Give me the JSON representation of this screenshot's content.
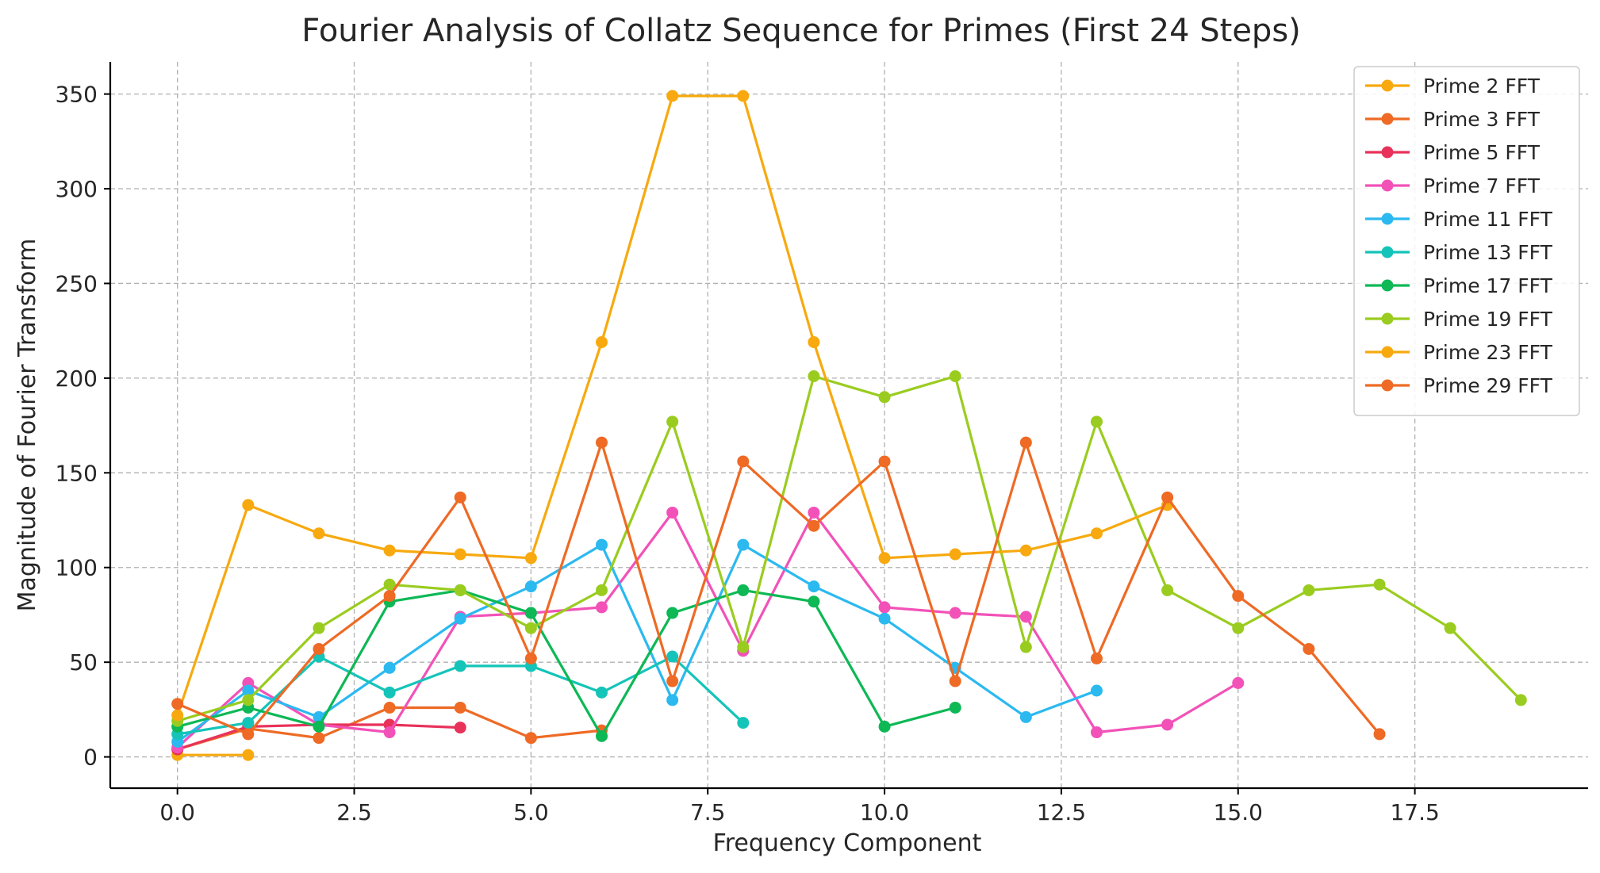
{
  "chart_data": {
    "type": "line",
    "title": "Fourier Analysis of Collatz Sequence for Primes (First 24 Steps)",
    "xlabel": "Frequency Component",
    "ylabel": "Magnitude of Fourier Transform",
    "xlim": [
      -0.95,
      19.95
    ],
    "ylim": [
      -16.5,
      367
    ],
    "xticks": [
      0,
      2.5,
      5,
      7.5,
      10,
      12.5,
      15,
      17.5
    ],
    "xtick_labels": [
      "0.0",
      "2.5",
      "5.0",
      "7.5",
      "10.0",
      "12.5",
      "15.0",
      "17.5"
    ],
    "yticks": [
      0,
      50,
      100,
      150,
      200,
      250,
      300,
      350
    ],
    "ytick_labels": [
      "0",
      "50",
      "100",
      "150",
      "200",
      "250",
      "300",
      "350"
    ],
    "grid": true,
    "legend_position": "top-right",
    "series": [
      {
        "name": "Prime 2 FFT",
        "color": "#F7A90F",
        "x": [
          0,
          1
        ],
        "values": [
          1,
          1
        ]
      },
      {
        "name": "Prime 3 FFT",
        "color": "#EE6A25",
        "x": [
          0,
          1,
          2,
          3,
          4,
          5,
          6
        ],
        "values": [
          4,
          15,
          10,
          26,
          26,
          10,
          14
        ]
      },
      {
        "name": "Prime 5 FFT",
        "color": "#E8325A",
        "x": [
          0,
          1,
          2,
          3,
          4
        ],
        "values": [
          4,
          16,
          17,
          17,
          15.5
        ]
      },
      {
        "name": "Prime 7 FFT",
        "color": "#F252B8",
        "x": [
          0,
          1,
          2,
          3,
          4,
          5,
          6,
          7,
          8,
          9,
          10,
          11,
          12,
          13,
          14,
          15
        ],
        "values": [
          5,
          39,
          17,
          13,
          74,
          76,
          79,
          129,
          56,
          129,
          79,
          76,
          74,
          13,
          17,
          39
        ]
      },
      {
        "name": "Prime 11 FFT",
        "color": "#2BB9F0",
        "x": [
          0,
          1,
          2,
          3,
          4,
          5,
          6,
          7,
          8,
          9,
          10,
          11,
          12,
          13
        ],
        "values": [
          8,
          35,
          21,
          47,
          73,
          90,
          112,
          30,
          112,
          90,
          73,
          47,
          21,
          35
        ]
      },
      {
        "name": "Prime 13 FFT",
        "color": "#14C4B8",
        "x": [
          0,
          1,
          2,
          3,
          4,
          5,
          6,
          7,
          8
        ],
        "values": [
          12,
          18,
          53,
          34,
          48,
          48,
          34,
          53,
          18
        ]
      },
      {
        "name": "Prime 17 FFT",
        "color": "#0DB855",
        "x": [
          0,
          1,
          2,
          3,
          4,
          5,
          6,
          7,
          8,
          9,
          10,
          11
        ],
        "values": [
          16,
          26,
          16,
          82,
          88,
          76,
          11,
          76,
          88,
          82,
          16,
          26
        ]
      },
      {
        "name": "Prime 19 FFT",
        "color": "#9ACC1F",
        "x": [
          0,
          1,
          2,
          3,
          4,
          5,
          6,
          7,
          8,
          9,
          10,
          11,
          12,
          13,
          14,
          15,
          16,
          17,
          18,
          19
        ],
        "values": [
          19,
          30,
          68,
          91,
          88,
          68,
          88,
          177,
          58,
          201,
          190,
          201,
          58,
          177,
          88,
          68,
          88,
          91,
          68,
          30
        ]
      },
      {
        "name": "Prime 23 FFT",
        "color": "#F7A90F",
        "x": [
          0,
          1,
          2,
          3,
          4,
          5,
          6,
          7,
          8,
          9,
          10,
          11,
          12,
          13,
          14
        ],
        "values": [
          22,
          133,
          118,
          109,
          107,
          105,
          219,
          349,
          349,
          219,
          105,
          107,
          109,
          118,
          133
        ]
      },
      {
        "name": "Prime 29 FFT",
        "color": "#EE6A25",
        "x": [
          0,
          1,
          2,
          3,
          4,
          5,
          6,
          7,
          8,
          9,
          10,
          11,
          12,
          13,
          14,
          15,
          16,
          17
        ],
        "values": [
          28,
          12,
          57,
          85,
          137,
          52,
          166,
          40,
          156,
          122,
          156,
          40,
          166,
          52,
          137,
          85,
          57,
          12
        ]
      }
    ]
  }
}
